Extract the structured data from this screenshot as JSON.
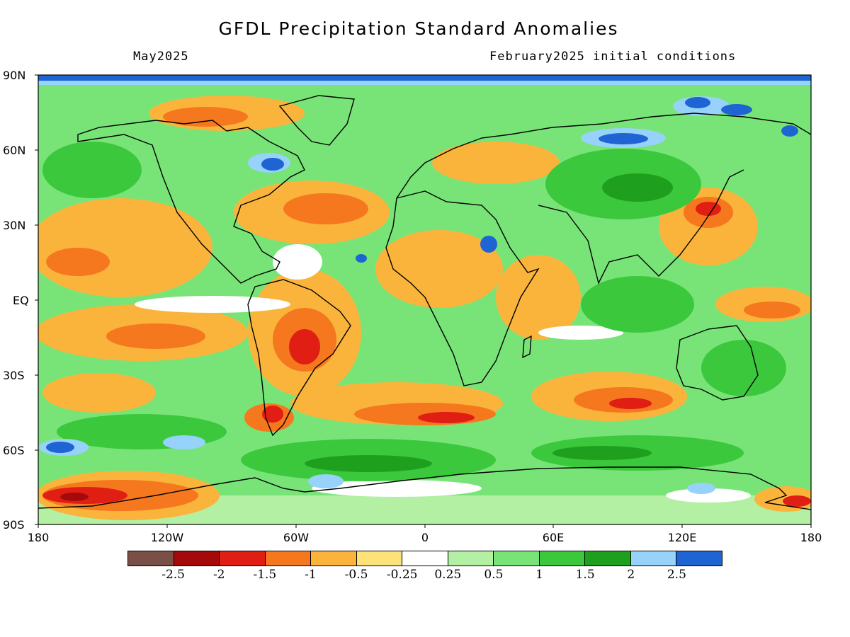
{
  "title": "GFDL Precipitation Standard Anomalies",
  "valid_month": "May2025",
  "init_label": "February2025 initial conditions",
  "lat_labels": [
    "90N",
    "60N",
    "30N",
    "EQ",
    "30S",
    "60S",
    "90S"
  ],
  "lon_labels": [
    "180",
    "120W",
    "60W",
    "0",
    "60E",
    "120E",
    "180"
  ],
  "legend": {
    "colors": [
      "#7a4f45",
      "#a50a0a",
      "#e01e14",
      "#f5781e",
      "#fab43c",
      "#fde27a",
      "#ffffff",
      "#b4f0a4",
      "#78e478",
      "#3cc83c",
      "#1ea01e",
      "#96d2fa",
      "#1e64d2"
    ],
    "labels": [
      "-2.5",
      "-2",
      "-1.5",
      "-1",
      "-0.5",
      "-0.25",
      "0.25",
      "0.5",
      "1",
      "1.5",
      "2",
      "2.5"
    ]
  },
  "colors": {
    "green": "#3cc83c",
    "light_green": "#b4f0a4",
    "orange": "#fab43c",
    "red": "#e01e14",
    "blue": "#1e64d2",
    "coast": "#000000"
  }
}
